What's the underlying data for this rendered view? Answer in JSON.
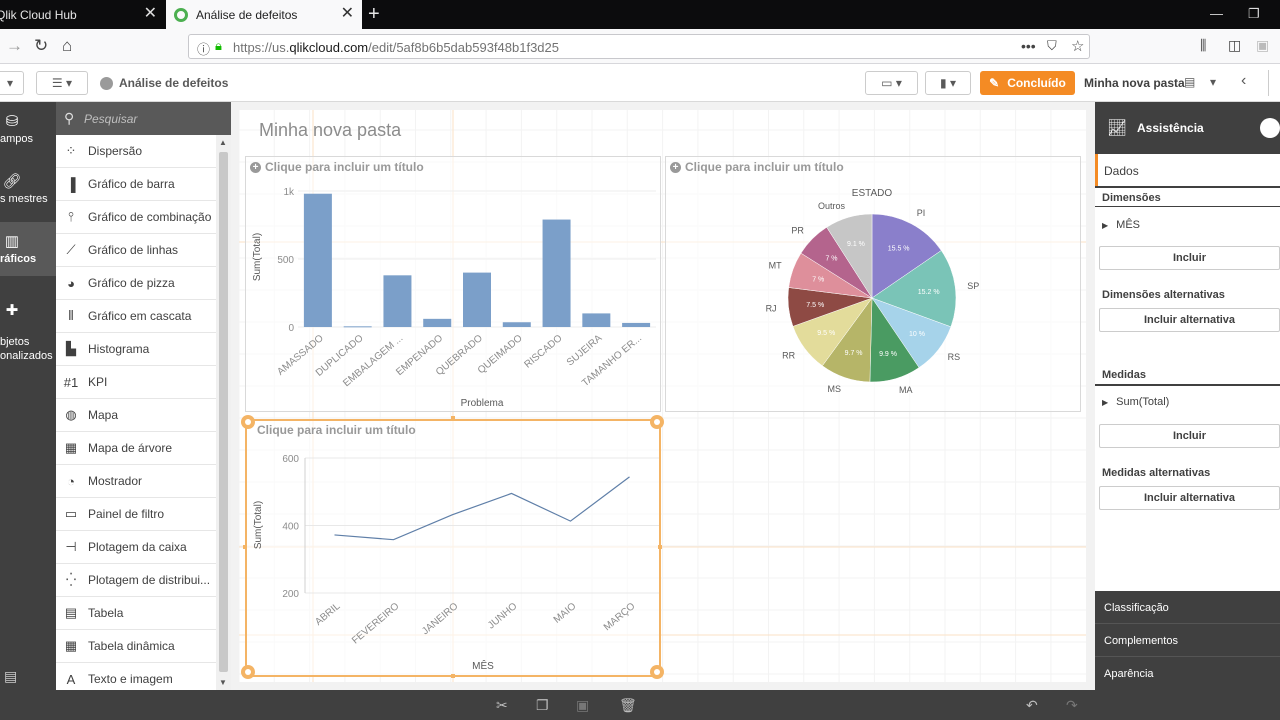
{
  "browser": {
    "tabs": [
      {
        "label": "Qlik Cloud Hub"
      },
      {
        "label": "Análise de defeitos"
      }
    ],
    "url_prefix": "https://us.",
    "url_host": "qlikcloud.com",
    "url_path": "/edit/5af8b6b5dab593f48b1f3d25"
  },
  "toolbar": {
    "app_title": "Análise de defeitos",
    "done_label": "Concluído",
    "sheet_label": "Minha nova pasta"
  },
  "left_nav": {
    "items": [
      {
        "label": "ampos",
        "icon": "database-icon"
      },
      {
        "label": "s mestres",
        "icon": "link-icon"
      },
      {
        "label": "ráficos",
        "icon": "bar-chart-icon"
      },
      {
        "label": "bjetos\nonalizados",
        "icon": "puzzle-icon"
      }
    ]
  },
  "assets": {
    "search_placeholder": "Pesquisar",
    "items": [
      {
        "label": "Dispersão",
        "icon": "scatter-icon"
      },
      {
        "label": "Gráfico de barra",
        "icon": "bar-icon"
      },
      {
        "label": "Gráfico de combinação",
        "icon": "combo-icon"
      },
      {
        "label": "Gráfico de linhas",
        "icon": "line-icon"
      },
      {
        "label": "Gráfico de pizza",
        "icon": "pie-icon"
      },
      {
        "label": "Gráfico em cascata",
        "icon": "waterfall-icon"
      },
      {
        "label": "Histograma",
        "icon": "histogram-icon"
      },
      {
        "label": "KPI",
        "icon": "kpi-icon"
      },
      {
        "label": "Mapa",
        "icon": "globe-icon"
      },
      {
        "label": "Mapa de árvore",
        "icon": "treemap-icon"
      },
      {
        "label": "Mostrador",
        "icon": "gauge-icon"
      },
      {
        "label": "Painel de filtro",
        "icon": "filter-icon"
      },
      {
        "label": "Plotagem da caixa",
        "icon": "boxplot-icon"
      },
      {
        "label": "Plotagem de distribui...",
        "icon": "distribution-icon"
      },
      {
        "label": "Tabela",
        "icon": "table-icon"
      },
      {
        "label": "Tabela dinâmica",
        "icon": "pivot-icon"
      },
      {
        "label": "Texto e imagem",
        "icon": "text-icon"
      }
    ]
  },
  "sheet": {
    "title": "Minha nova pasta",
    "chart_placeholder_title": "Clique para incluir um título"
  },
  "chart_data": [
    {
      "type": "bar",
      "categories": [
        "AMASSADO",
        "DUPLICADO",
        "EMBALAGEM ...",
        "EMPENADO",
        "QUEBRADO",
        "QUEIMADO",
        "RISCADO",
        "SUJEIRA",
        "TAMANHO ER..."
      ],
      "values": [
        980,
        5,
        380,
        60,
        400,
        35,
        790,
        100,
        30
      ],
      "xlabel": "Problema",
      "ylabel": "Sum(Total)",
      "yticks": [
        "0",
        "500",
        "1k"
      ],
      "ylim": [
        0,
        1000
      ]
    },
    {
      "type": "pie",
      "title": "ESTADO",
      "categories": [
        "PI",
        "SP",
        "RS",
        "MA",
        "MS",
        "RR",
        "RJ",
        "MT",
        "PR",
        "Outros"
      ],
      "values": [
        15.5,
        15.2,
        10,
        9.9,
        9.7,
        9.5,
        7.5,
        7,
        7,
        9.1
      ],
      "value_labels": [
        "15.5 %",
        "15.2 %",
        "10 %",
        "9.9 %",
        "9.7 %",
        "9.5 %",
        "7.5 %",
        "7 %",
        "7 %",
        "9.1 %"
      ],
      "colors": [
        "#8a7fcb",
        "#7ac4b7",
        "#a6d3ea",
        "#4a9b62",
        "#b6b568",
        "#e3dc9b",
        "#8e4a44",
        "#de8f9b",
        "#b4648d",
        "#c6c6c6"
      ]
    },
    {
      "type": "line",
      "categories": [
        "ABRIL",
        "FEVEREIRO",
        "JANEIRO",
        "JUNHO",
        "MAIO",
        "MARÇO"
      ],
      "values": [
        372,
        358,
        432,
        495,
        413,
        544
      ],
      "xlabel": "MÊS",
      "ylabel": "Sum(Total)",
      "yticks": [
        "200",
        "400",
        "600"
      ],
      "ylim": [
        200,
        600
      ]
    }
  ],
  "assistance": {
    "title": "Assistência",
    "tab_data": "Dados",
    "dimensions_label": "Dimensões",
    "dimension_item": "MÊS",
    "add_label": "Incluir",
    "alt_dimensions_label": "Dimensões alternativas",
    "add_alt_label": "Incluir alternativa",
    "measures_label": "Medidas",
    "measure_item": "Sum(Total)",
    "alt_measures_label": "Medidas alternativas",
    "bottom_sections": [
      "Classificação",
      "Complementos",
      "Aparência"
    ]
  }
}
